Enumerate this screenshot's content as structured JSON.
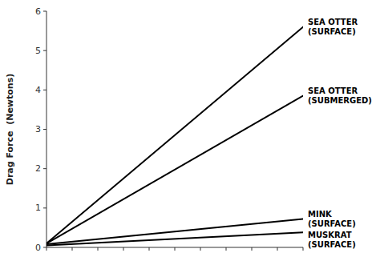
{
  "chart_data": {
    "type": "line",
    "ylabel": "Drag Force  (Newtons)",
    "x": [
      0,
      1
    ],
    "xlim": [
      0,
      1
    ],
    "xticks": [
      0,
      0.1,
      0.2,
      0.3,
      0.4,
      0.5,
      0.6,
      0.7,
      0.8,
      0.9,
      1
    ],
    "ylim": [
      0,
      6
    ],
    "yticks": [
      0,
      1,
      2,
      3,
      4,
      5,
      6
    ],
    "tick_labels": "y",
    "grid": false,
    "series": [
      {
        "name": "SEA OTTER\n(SURFACE)",
        "color": "#000000",
        "values": [
          0.1,
          5.6
        ]
      },
      {
        "name": "SEA OTTER\n(SUBMERGED)",
        "color": "#000000",
        "values": [
          0.1,
          3.85
        ]
      },
      {
        "name": "MINK\n(SURFACE)",
        "color": "#000000",
        "values": [
          0.08,
          0.72
        ]
      },
      {
        "name": "MUSKRAT\n(SURFACE)",
        "color": "#000000",
        "values": [
          0.05,
          0.38
        ]
      }
    ]
  }
}
